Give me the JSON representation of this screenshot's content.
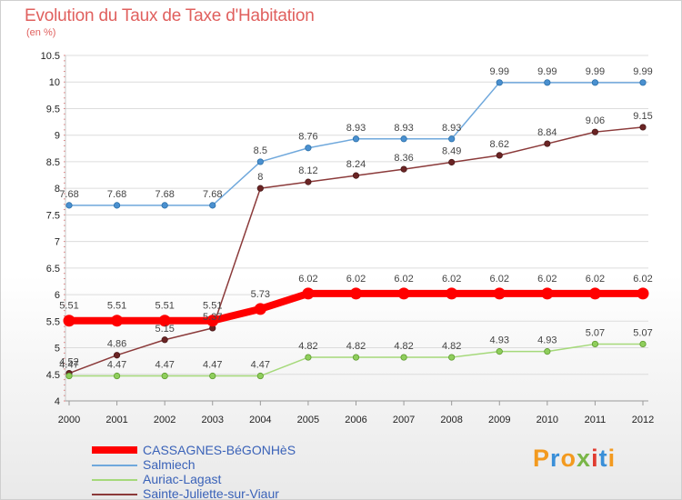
{
  "header": {
    "title": "Evolution du Taux de Taxe d'Habitation",
    "unit": "(en %)"
  },
  "logo": {
    "text": "Proxiti",
    "letter_colors": [
      "#f39a1f",
      "#3a8fd8",
      "#f39a1f",
      "#7ab648",
      "#e03c31",
      "#3a8fd8",
      "#f39a1f"
    ]
  },
  "chart_data": {
    "type": "line",
    "title": "Evolution du Taux de Taxe d'Habitation",
    "ylabel": "(en %)",
    "xlabel": "",
    "x": [
      "2000",
      "2001",
      "2002",
      "2003",
      "2004",
      "2005",
      "2006",
      "2007",
      "2008",
      "2009",
      "2010",
      "2011",
      "2012"
    ],
    "ylim": [
      4,
      10.5
    ],
    "yticks": [
      "4",
      "4.5",
      "5",
      "5.5",
      "6",
      "6.5",
      "7",
      "7.5",
      "8",
      "8.5",
      "9",
      "9.5",
      "10",
      "10.5"
    ],
    "grid": "horizontal",
    "legend_position": "bottom-left",
    "series": [
      {
        "name": "CASSAGNES-BéGONHèS",
        "color": "#ff0000",
        "values": [
          5.51,
          5.51,
          5.51,
          5.51,
          5.73,
          6.02,
          6.02,
          6.02,
          6.02,
          6.02,
          6.02,
          6.02,
          6.02
        ],
        "labels": [
          "5.51",
          "5.51",
          "5.51",
          "5.51",
          "5.73",
          "6.02",
          "6.02",
          "6.02",
          "6.02",
          "6.02",
          "6.02",
          "6.02",
          "6.02"
        ]
      },
      {
        "name": "Salmiech",
        "color": "#6fa8dc",
        "values": [
          7.68,
          7.68,
          7.68,
          7.68,
          8.5,
          8.76,
          8.93,
          8.93,
          8.93,
          9.99,
          9.99,
          9.99,
          9.99
        ],
        "labels": [
          "7.68",
          "7.68",
          "7.68",
          "7.68",
          "8.5",
          "8.76",
          "8.93",
          "8.93",
          "8.93",
          "9.99",
          "9.99",
          "9.99",
          "9.99"
        ]
      },
      {
        "name": "Auriac-Lagast",
        "color": "#a5d97a",
        "values": [
          4.47,
          4.47,
          4.47,
          4.47,
          4.47,
          4.82,
          4.82,
          4.82,
          4.82,
          4.93,
          4.93,
          5.07,
          5.07
        ],
        "labels": [
          "4.47",
          "4.47",
          "4.47",
          "4.47",
          "4.47",
          "4.82",
          "4.82",
          "4.82",
          "4.82",
          "4.93",
          "4.93",
          "5.07",
          "5.07"
        ]
      },
      {
        "name": "Sainte-Juliette-sur-Viaur",
        "color": "#8b3a3a",
        "values": [
          4.52,
          4.86,
          5.15,
          5.37,
          8,
          8.12,
          8.24,
          8.36,
          8.49,
          8.62,
          8.84,
          9.06,
          9.15
        ],
        "labels": [
          "4.52",
          "4.86",
          "5.15",
          "5.37",
          "8",
          "8.12",
          "8.24",
          "8.36",
          "8.49",
          "8.62",
          "8.84",
          "9.06",
          "9.15"
        ]
      }
    ]
  }
}
